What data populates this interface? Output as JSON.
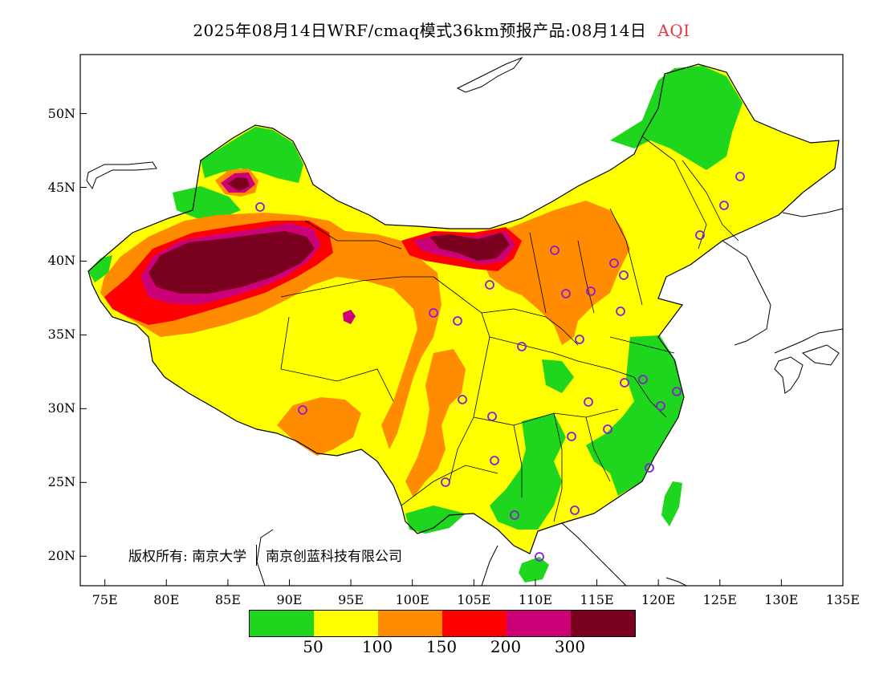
{
  "title": {
    "main": "2025年08月14日WRF/cmaq模式36km预报产品:08月14日",
    "variable": "AQI"
  },
  "map": {
    "lon_range": [
      73,
      135
    ],
    "lat_range": [
      18,
      54
    ],
    "lat_ticks": [
      "50N",
      "45N",
      "40N",
      "35N",
      "30N",
      "25N",
      "20N"
    ],
    "lon_ticks": [
      "75E",
      "80E",
      "85E",
      "90E",
      "95E",
      "100E",
      "105E",
      "110E",
      "115E",
      "120E",
      "125E",
      "130E",
      "135E"
    ]
  },
  "copyright": {
    "left": "版权所有: 南京大学",
    "right": "南京创蓝科技有限公司"
  },
  "legend": {
    "colors": [
      "#1ed61e",
      "#ffff00",
      "#ff8c00",
      "#ff0000",
      "#cc0077",
      "#7a0020"
    ],
    "labels": [
      "50",
      "100",
      "150",
      "200",
      "300"
    ]
  },
  "colors": {
    "station_marker": "#8a1bd8",
    "title_accent": "#e8383d"
  }
}
